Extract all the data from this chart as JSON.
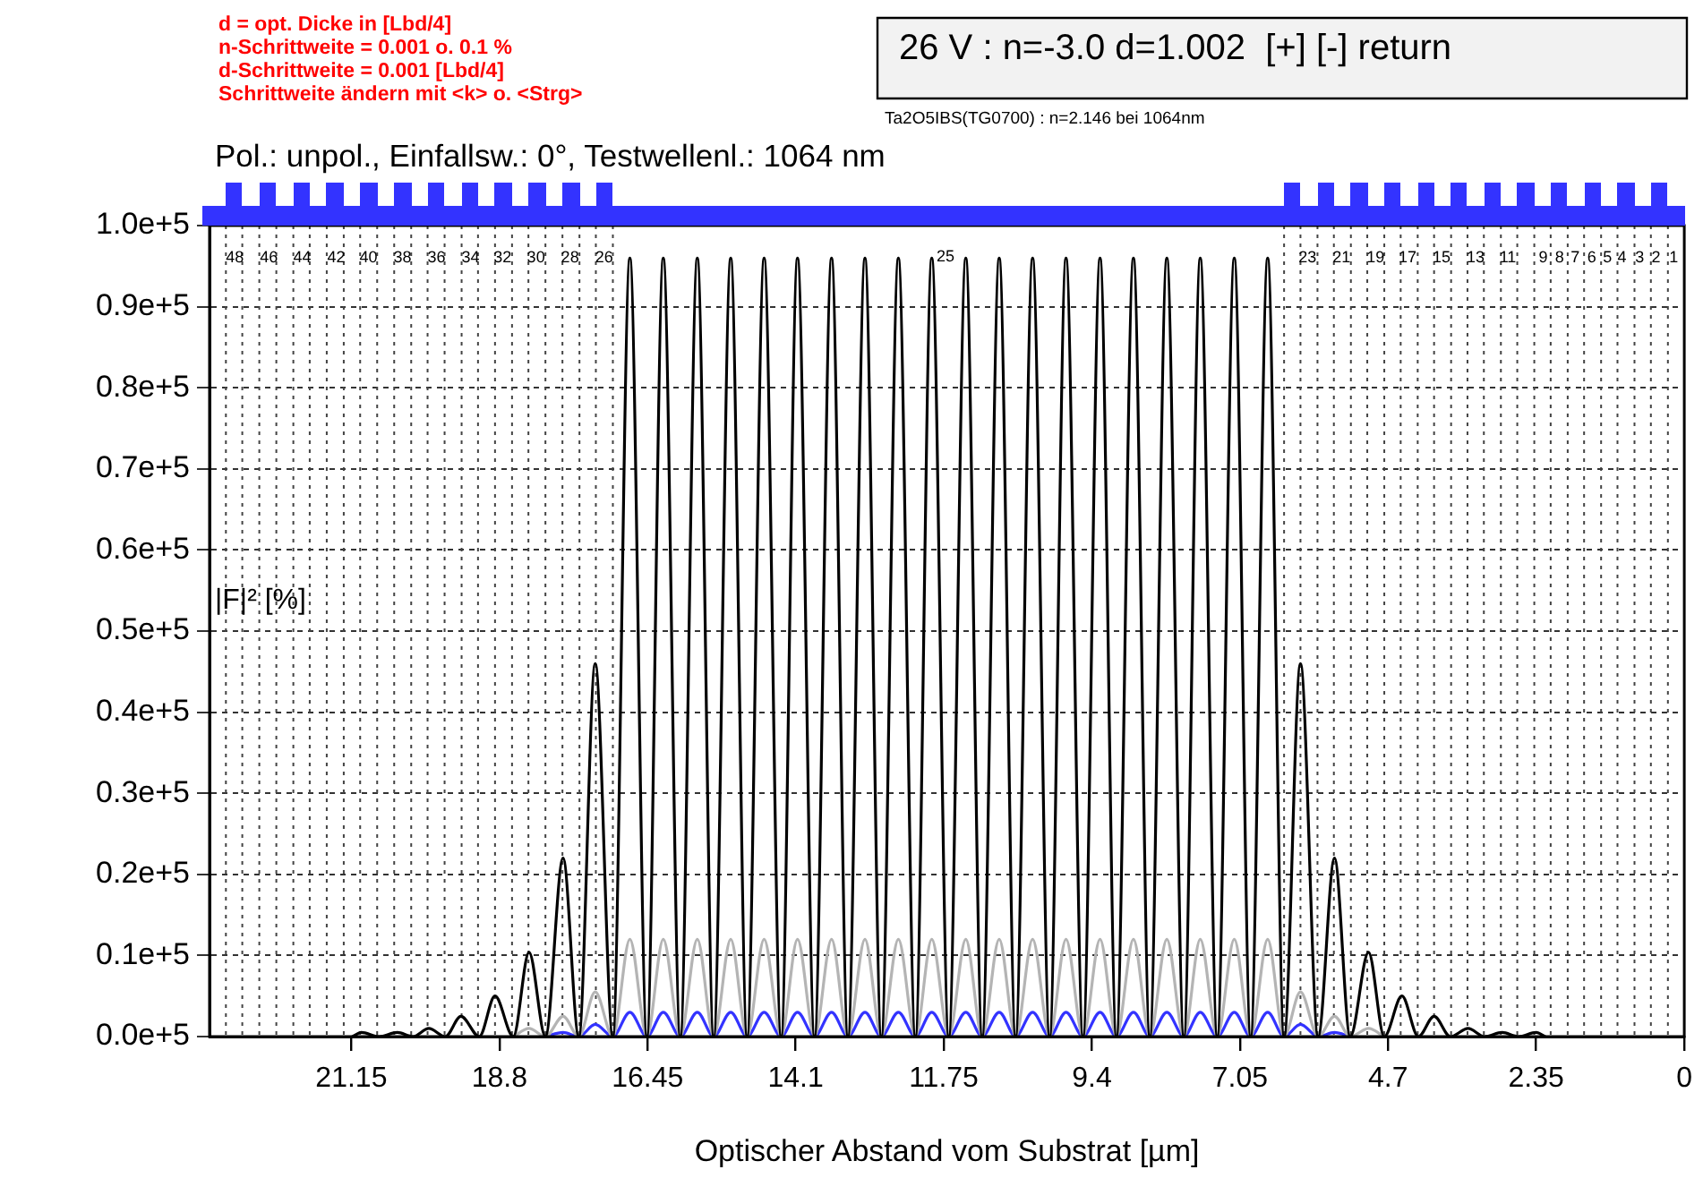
{
  "chart_data": {
    "type": "line",
    "title": "Pol.: unpol., Einfallsw.: 0°, Testwellenl.: 1064 nm",
    "xlabel": "Optischer Abstand vom Substrat [µm]",
    "ylabel": "|F|² [%]",
    "xlim": [
      23.4,
      0
    ],
    "xticks": [
      21.15,
      18.8,
      16.45,
      14.1,
      11.75,
      9.4,
      7.05,
      4.7,
      2.35,
      0
    ],
    "ylim": [
      0,
      100000
    ],
    "yticks": [
      {
        "value": 0,
        "label": "0.0e+5"
      },
      {
        "value": 10000,
        "label": "0.1e+5"
      },
      {
        "value": 20000,
        "label": "0.2e+5"
      },
      {
        "value": 30000,
        "label": "0.3e+5"
      },
      {
        "value": 40000,
        "label": "0.4e+5"
      },
      {
        "value": 50000,
        "label": "0.5e+5"
      },
      {
        "value": 60000,
        "label": "0.6e+5"
      },
      {
        "value": 70000,
        "label": "0.7e+5"
      },
      {
        "value": 80000,
        "label": "0.8e+5"
      },
      {
        "value": 90000,
        "label": "0.9e+5"
      },
      {
        "value": 100000,
        "label": "1.0e+5"
      }
    ],
    "grid": "y",
    "legend": false,
    "marker": "none",
    "series": [
      {
        "color": "#000000",
        "x": [
          2.21,
          2.35,
          2.63,
          2.89,
          3.17,
          3.43,
          3.71,
          3.97,
          4.22,
          4.48,
          4.76,
          5.01,
          5.3,
          5.55,
          5.81,
          6.09,
          6.35,
          6.61,
          6.88,
          7.14,
          7.41,
          7.68,
          7.94,
          8.21,
          8.48,
          8.74,
          9.01,
          9.27,
          9.54,
          9.81,
          10.07,
          10.34,
          10.61,
          10.87,
          11.14,
          11.4,
          11.67,
          11.94,
          12.2,
          12.47,
          12.74,
          13.0,
          13.27,
          13.53,
          13.8,
          14.07,
          14.33,
          14.6,
          14.87,
          15.13,
          15.4,
          15.66,
          15.93,
          16.2,
          16.46,
          16.73,
          17.0,
          17.28,
          17.54,
          17.79,
          18.07,
          18.33,
          18.58,
          18.87,
          19.12,
          19.41,
          19.66,
          19.92,
          20.17,
          20.42,
          20.71,
          20.99,
          21.13
        ],
        "values": [
          0,
          500,
          0,
          500,
          0,
          1000,
          0,
          2500,
          0,
          5000,
          0,
          10400,
          0,
          22000,
          0,
          46000,
          0,
          96000,
          0,
          96000,
          0,
          96000,
          0,
          96000,
          0,
          96000,
          0,
          96000,
          0,
          96000,
          0,
          96000,
          0,
          96000,
          0,
          96000,
          0,
          96000,
          0,
          96000,
          0,
          96000,
          0,
          96000,
          0,
          96000,
          0,
          96000,
          0,
          96000,
          0,
          96000,
          0,
          96000,
          0,
          96000,
          0,
          46000,
          0,
          22000,
          0,
          10400,
          0,
          5000,
          0,
          2500,
          0,
          1000,
          0,
          500,
          0,
          500,
          0
        ]
      },
      {
        "color": "#b4b4b4",
        "x": [
          4.76,
          5.01,
          5.3,
          5.55,
          5.81,
          6.09,
          6.35,
          6.61,
          6.88,
          7.14,
          7.41,
          7.68,
          7.94,
          8.21,
          8.48,
          8.74,
          9.01,
          9.27,
          9.54,
          9.81,
          10.07,
          10.34,
          10.61,
          10.87,
          11.14,
          11.4,
          11.67,
          11.94,
          12.2,
          12.47,
          12.74,
          13.0,
          13.27,
          13.53,
          13.8,
          14.07,
          14.33,
          14.6,
          14.87,
          15.13,
          15.4,
          15.66,
          15.93,
          16.2,
          16.46,
          16.73,
          17.0,
          17.28,
          17.54,
          17.79,
          18.07,
          18.33,
          18.58
        ],
        "values": [
          0,
          1000,
          0,
          2500,
          0,
          5500,
          0,
          12000,
          0,
          12000,
          0,
          12000,
          0,
          12000,
          0,
          12000,
          0,
          12000,
          0,
          12000,
          0,
          12000,
          0,
          12000,
          0,
          12000,
          0,
          12000,
          0,
          12000,
          0,
          12000,
          0,
          12000,
          0,
          12000,
          0,
          12000,
          0,
          12000,
          0,
          12000,
          0,
          12000,
          0,
          12000,
          0,
          5500,
          0,
          2500,
          0,
          1000,
          0
        ]
      },
      {
        "color": "#3333ff",
        "x": [
          5.3,
          5.55,
          5.81,
          6.09,
          6.35,
          6.61,
          6.88,
          7.14,
          7.41,
          7.68,
          7.94,
          8.21,
          8.48,
          8.74,
          9.01,
          9.27,
          9.54,
          9.81,
          10.07,
          10.34,
          10.61,
          10.87,
          11.14,
          11.4,
          11.67,
          11.94,
          12.2,
          12.47,
          12.74,
          13.0,
          13.27,
          13.53,
          13.8,
          14.07,
          14.33,
          14.6,
          14.87,
          15.13,
          15.4,
          15.66,
          15.93,
          16.2,
          16.46,
          16.73,
          17.0,
          17.28,
          17.54,
          17.79,
          18.07
        ],
        "values": [
          0,
          500,
          0,
          1500,
          0,
          3000,
          0,
          3000,
          0,
          3000,
          0,
          3000,
          0,
          3000,
          0,
          3000,
          0,
          3000,
          0,
          3000,
          0,
          3000,
          0,
          3000,
          0,
          3000,
          0,
          3000,
          0,
          3000,
          0,
          3000,
          0,
          3000,
          0,
          3000,
          0,
          3000,
          0,
          3000,
          0,
          3000,
          0,
          3000,
          0,
          1500,
          0,
          500,
          0
        ]
      }
    ],
    "ref_lines": [
      {
        "axis": "x",
        "value": 17.0
      },
      {
        "axis": "x",
        "value": 17.27
      },
      {
        "axis": "x",
        "value": 17.53
      },
      {
        "axis": "x",
        "value": 17.8
      },
      {
        "axis": "x",
        "value": 18.07
      },
      {
        "axis": "x",
        "value": 18.34
      },
      {
        "axis": "x",
        "value": 18.6
      },
      {
        "axis": "x",
        "value": 18.87
      },
      {
        "axis": "x",
        "value": 19.14
      },
      {
        "axis": "x",
        "value": 19.4
      },
      {
        "axis": "x",
        "value": 19.67
      },
      {
        "axis": "x",
        "value": 19.94
      },
      {
        "axis": "x",
        "value": 20.2
      },
      {
        "axis": "x",
        "value": 20.47
      },
      {
        "axis": "x",
        "value": 20.74
      },
      {
        "axis": "x",
        "value": 21.01
      },
      {
        "axis": "x",
        "value": 21.27
      },
      {
        "axis": "x",
        "value": 21.54
      },
      {
        "axis": "x",
        "value": 21.81
      },
      {
        "axis": "x",
        "value": 22.07
      },
      {
        "axis": "x",
        "value": 22.34
      },
      {
        "axis": "x",
        "value": 22.61
      },
      {
        "axis": "x",
        "value": 22.88
      },
      {
        "axis": "x",
        "value": 23.14
      },
      {
        "axis": "x",
        "value": 6.35
      },
      {
        "axis": "x",
        "value": 6.09
      },
      {
        "axis": "x",
        "value": 5.82
      },
      {
        "axis": "x",
        "value": 5.56
      },
      {
        "axis": "x",
        "value": 5.29
      },
      {
        "axis": "x",
        "value": 5.03
      },
      {
        "axis": "x",
        "value": 4.76
      },
      {
        "axis": "x",
        "value": 4.5
      },
      {
        "axis": "x",
        "value": 4.23
      },
      {
        "axis": "x",
        "value": 3.97
      },
      {
        "axis": "x",
        "value": 3.7
      },
      {
        "axis": "x",
        "value": 3.44
      },
      {
        "axis": "x",
        "value": 3.18
      },
      {
        "axis": "x",
        "value": 2.91
      },
      {
        "axis": "x",
        "value": 2.65
      },
      {
        "axis": "x",
        "value": 2.38
      },
      {
        "axis": "x",
        "value": 2.12
      },
      {
        "axis": "x",
        "value": 1.85
      },
      {
        "axis": "x",
        "value": 1.59
      },
      {
        "axis": "x",
        "value": 1.32
      },
      {
        "axis": "x",
        "value": 1.06
      },
      {
        "axis": "x",
        "value": 0.79
      },
      {
        "axis": "x",
        "value": 0.53
      },
      {
        "axis": "x",
        "value": 0.26
      }
    ],
    "annotations": [
      "d = opt. Dicke in [Lbd/4]",
      "n-Schrittweite = 0.001 o. 0.1 %",
      "d-Schrittweite = 0.001 [Lbd/4]",
      "Schrittweite ändern mit <k> o. <Strg>",
      "26 V : n=-3.0 d=1.002  [+] [-] return",
      "Ta2O5IBS(TG0700) : n=2.146 bei 1064nm",
      {
        "text": "48",
        "x": 23.0,
        "y": 96000
      },
      {
        "text": "46",
        "x": 22.46,
        "y": 96000
      },
      {
        "text": "44",
        "x": 21.93,
        "y": 96000
      },
      {
        "text": "42",
        "x": 21.39,
        "y": 96000
      },
      {
        "text": "40",
        "x": 20.88,
        "y": 96000
      },
      {
        "text": "38",
        "x": 20.34,
        "y": 96000
      },
      {
        "text": "36",
        "x": 19.8,
        "y": 96000
      },
      {
        "text": "34",
        "x": 19.26,
        "y": 96000
      },
      {
        "text": "32",
        "x": 18.75,
        "y": 96000
      },
      {
        "text": "30",
        "x": 18.22,
        "y": 96000
      },
      {
        "text": "28",
        "x": 17.68,
        "y": 96000
      },
      {
        "text": "26",
        "x": 17.14,
        "y": 96000
      },
      "25",
      {
        "text": "23",
        "x": 5.98,
        "y": 96000
      },
      {
        "text": "21",
        "x": 5.44,
        "y": 96000
      },
      {
        "text": "19",
        "x": 4.9,
        "y": 96000
      },
      {
        "text": "17",
        "x": 4.39,
        "y": 96000
      },
      {
        "text": "15",
        "x": 3.85,
        "y": 96000
      },
      {
        "text": "13",
        "x": 3.31,
        "y": 96000
      },
      {
        "text": "11",
        "x": 2.8,
        "y": 96000
      },
      {
        "text": "9",
        "x": 2.24,
        "y": 96000
      },
      {
        "text": "8",
        "x": 1.98,
        "y": 96000
      },
      {
        "text": "7",
        "x": 1.73,
        "y": 96000
      },
      {
        "text": "6",
        "x": 1.47,
        "y": 96000
      },
      {
        "text": "5",
        "x": 1.22,
        "y": 96000
      },
      {
        "text": "4",
        "x": 0.99,
        "y": 96000
      },
      {
        "text": "3",
        "x": 0.71,
        "y": 96000
      },
      {
        "text": "2",
        "x": 0.45,
        "y": 96000
      },
      {
        "text": "1",
        "x": 0.17,
        "y": 96000
      }
    ]
  }
}
